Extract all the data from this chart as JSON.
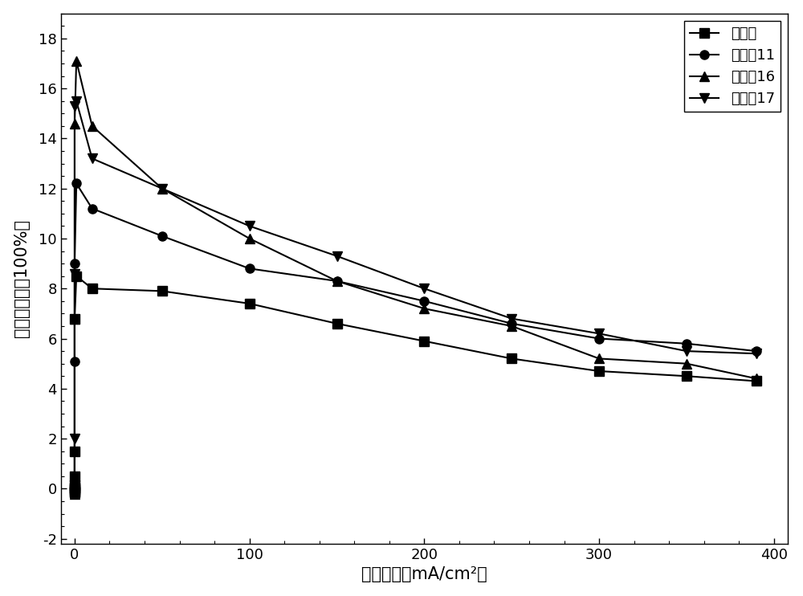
{
  "title": "",
  "xlabel": "电流密度（mA/cm²）",
  "ylabel": "外量子效率（100%）",
  "xlim": [
    -8,
    408
  ],
  "ylim": [
    -2.2,
    19
  ],
  "yticks": [
    -2,
    0,
    2,
    4,
    6,
    8,
    10,
    12,
    14,
    16,
    18
  ],
  "xticks": [
    0,
    100,
    200,
    300,
    400
  ],
  "series": [
    {
      "label": "比较例",
      "marker": "s",
      "color": "#000000",
      "x": [
        0,
        0,
        0,
        0,
        0,
        0,
        0,
        0,
        0,
        1,
        10,
        50,
        100,
        150,
        200,
        250,
        300,
        350,
        390
      ],
      "y": [
        -0.15,
        -0.1,
        -0.05,
        0.0,
        0.05,
        0.15,
        0.5,
        1.5,
        6.8,
        8.5,
        8.0,
        7.9,
        7.4,
        6.6,
        5.9,
        5.2,
        4.7,
        4.5,
        4.3
      ]
    },
    {
      "label": "实施例11",
      "marker": "o",
      "color": "#000000",
      "x": [
        0,
        0,
        0,
        0,
        0,
        0,
        0,
        0,
        0,
        1,
        10,
        50,
        100,
        150,
        200,
        250,
        300,
        350,
        390
      ],
      "y": [
        -0.2,
        -0.15,
        -0.1,
        -0.05,
        0.0,
        0.05,
        0.2,
        5.1,
        9.0,
        12.2,
        11.2,
        10.1,
        8.8,
        8.3,
        7.5,
        6.6,
        6.0,
        5.8,
        5.5
      ]
    },
    {
      "label": "实施例16",
      "marker": "^",
      "color": "#000000",
      "x": [
        0,
        0,
        0,
        0,
        0,
        0,
        0,
        0,
        0,
        1,
        10,
        50,
        100,
        150,
        200,
        250,
        300,
        350,
        390
      ],
      "y": [
        -0.2,
        -0.15,
        -0.1,
        -0.05,
        0.0,
        0.1,
        0.5,
        6.8,
        14.6,
        17.1,
        14.5,
        12.0,
        10.0,
        8.3,
        7.2,
        6.5,
        5.2,
        5.0,
        4.4
      ]
    },
    {
      "label": "实施例17",
      "marker": "v",
      "color": "#000000",
      "x": [
        0,
        0,
        0,
        0,
        0,
        0,
        0,
        0,
        0,
        1,
        10,
        50,
        100,
        150,
        200,
        250,
        300,
        350,
        390
      ],
      "y": [
        -0.2,
        -0.15,
        -0.1,
        -0.05,
        0.05,
        0.15,
        2.0,
        8.6,
        15.3,
        15.5,
        13.2,
        12.0,
        10.5,
        9.3,
        8.0,
        6.8,
        6.2,
        5.5,
        5.4
      ]
    }
  ],
  "legend_loc": "upper right",
  "background_color": "#ffffff",
  "fontsize_label": 15,
  "fontsize_tick": 13,
  "fontsize_legend": 13,
  "markersize": 8,
  "linewidth": 1.5
}
